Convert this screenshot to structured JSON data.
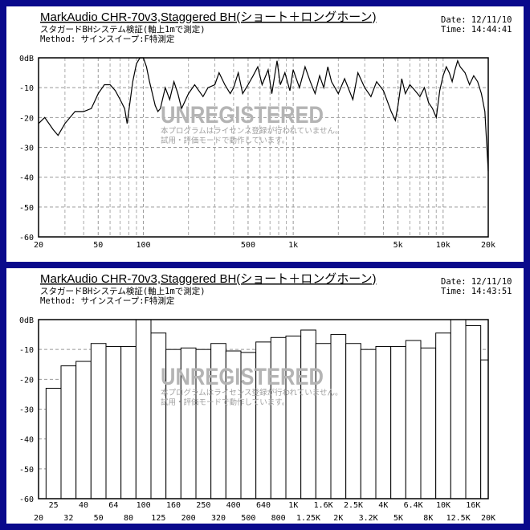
{
  "chart_data": [
    {
      "type": "line",
      "title": "MarkAudio CHR-70v3,Staggered BH(ショート＋ロングホーン)",
      "subtitle": "スタガードBHシステム検証(軸上1mで測定)",
      "method": "Method: サインスイープ:F特測定",
      "date": "Date: 12/11/10",
      "time": "Time: 14:44:41",
      "annotations": [
        "UNREGISTERED",
        "本プログラムはライセンス登録が行われていません。",
        "試用・評価モードで動作しています。"
      ],
      "log_x": true,
      "grid": true,
      "color": "#000000",
      "x": [
        20,
        22,
        25,
        27,
        30,
        35,
        40,
        45,
        50,
        55,
        60,
        65,
        70,
        75,
        78,
        85,
        90,
        95,
        100,
        105,
        110,
        120,
        125,
        130,
        140,
        150,
        160,
        170,
        180,
        200,
        220,
        250,
        270,
        300,
        320,
        350,
        380,
        400,
        430,
        460,
        500,
        540,
        580,
        620,
        680,
        720,
        780,
        820,
        880,
        950,
        1000,
        1100,
        1200,
        1300,
        1400,
        1500,
        1600,
        1700,
        1800,
        2000,
        2200,
        2500,
        2700,
        3000,
        3300,
        3600,
        4000,
        4500,
        4800,
        5000,
        5300,
        5600,
        6000,
        6500,
        7000,
        7500,
        8000,
        8500,
        9000,
        9500,
        10000,
        10500,
        11000,
        11500,
        12000,
        12500,
        13000,
        14000,
        15000,
        16000,
        17000,
        18000,
        19000,
        20000
      ],
      "values": [
        -22,
        -20,
        -24,
        -26,
        -22,
        -18,
        -18,
        -17,
        -12,
        -9,
        -9,
        -11,
        -14,
        -17,
        -22,
        -8,
        -2,
        0,
        0,
        -3,
        -8,
        -16,
        -18,
        -17,
        -10,
        -14,
        -8,
        -12,
        -17,
        -12,
        -9,
        -13,
        -10,
        -9,
        -5,
        -9,
        -12,
        -10,
        -5,
        -12,
        -9,
        -6,
        -3,
        -9,
        -4,
        -12,
        -1,
        -9,
        -5,
        -11,
        -4,
        -10,
        -3,
        -8,
        -12,
        -6,
        -10,
        -3,
        -8,
        -12,
        -7,
        -14,
        -5,
        -10,
        -13,
        -8,
        -11,
        -18,
        -21,
        -16,
        -7,
        -12,
        -9,
        -11,
        -13,
        -10,
        -15,
        -17,
        -20,
        -11,
        -6,
        -3,
        -5,
        -8,
        -4,
        -1,
        -3,
        -5,
        -9,
        -6,
        -8,
        -12,
        -18,
        -38
      ],
      "xlim": [
        20,
        20000
      ],
      "ylim": [
        -60,
        0
      ],
      "xticks": [
        20,
        50,
        100,
        500,
        {
          "value": 1000,
          "label": "1k"
        },
        {
          "value": 5000,
          "label": "5k"
        },
        {
          "value": 10000,
          "label": "10k"
        },
        {
          "value": 20000,
          "label": "20k"
        }
      ],
      "xticks_minor": [
        30,
        40,
        60,
        70,
        80,
        90,
        200,
        300,
        400,
        600,
        700,
        800,
        900,
        2000,
        3000,
        4000,
        6000,
        7000,
        8000,
        9000
      ],
      "yticks": [
        {
          "value": 0,
          "label": "0dB"
        },
        -10,
        -20,
        -30,
        -40,
        -50,
        -60
      ]
    },
    {
      "type": "bar",
      "title": "MarkAudio CHR-70v3,Staggered BH(ショート＋ロングホーン)",
      "subtitle": "スタガードBHシステム検証(軸上1mで測定)",
      "method": "Method: サインスイープ:F特測定",
      "date": "Date: 12/11/10",
      "time": "Time: 14:43:51",
      "annotations": [
        "UNREGISTERED",
        "本プログラムはライセンス登録が行われていません。",
        "試用・評価モードで動作しています。"
      ],
      "grid": true,
      "color": "#ffffff",
      "categories": [
        "20",
        "25",
        "32",
        "40",
        "50",
        "64",
        "80",
        "100",
        "125",
        "160",
        "200",
        "250",
        "320",
        "400",
        "500",
        "640",
        "800",
        "1K",
        "1.25K",
        "1.6K",
        "2K",
        "2.5K",
        "3.2K",
        "4K",
        "5K",
        "6.4K",
        "8K",
        "10K",
        "12.5K",
        "16K",
        "20K"
      ],
      "values": [
        null,
        -23,
        -15.5,
        -14,
        -8,
        -9,
        -9,
        0,
        -4.5,
        -10,
        -9.5,
        -10,
        -8,
        -10.5,
        -11,
        -7.5,
        -6,
        -5.5,
        -3.5,
        -8,
        -5,
        -8,
        -10,
        -9,
        -9,
        -7,
        -9.5,
        -4.5,
        0,
        -2,
        -13.5
      ],
      "ylim": [
        -60,
        0
      ],
      "yticks": [
        {
          "value": 0,
          "label": "0dB"
        },
        -10,
        -20,
        -30,
        -40,
        -50,
        -60
      ]
    }
  ]
}
